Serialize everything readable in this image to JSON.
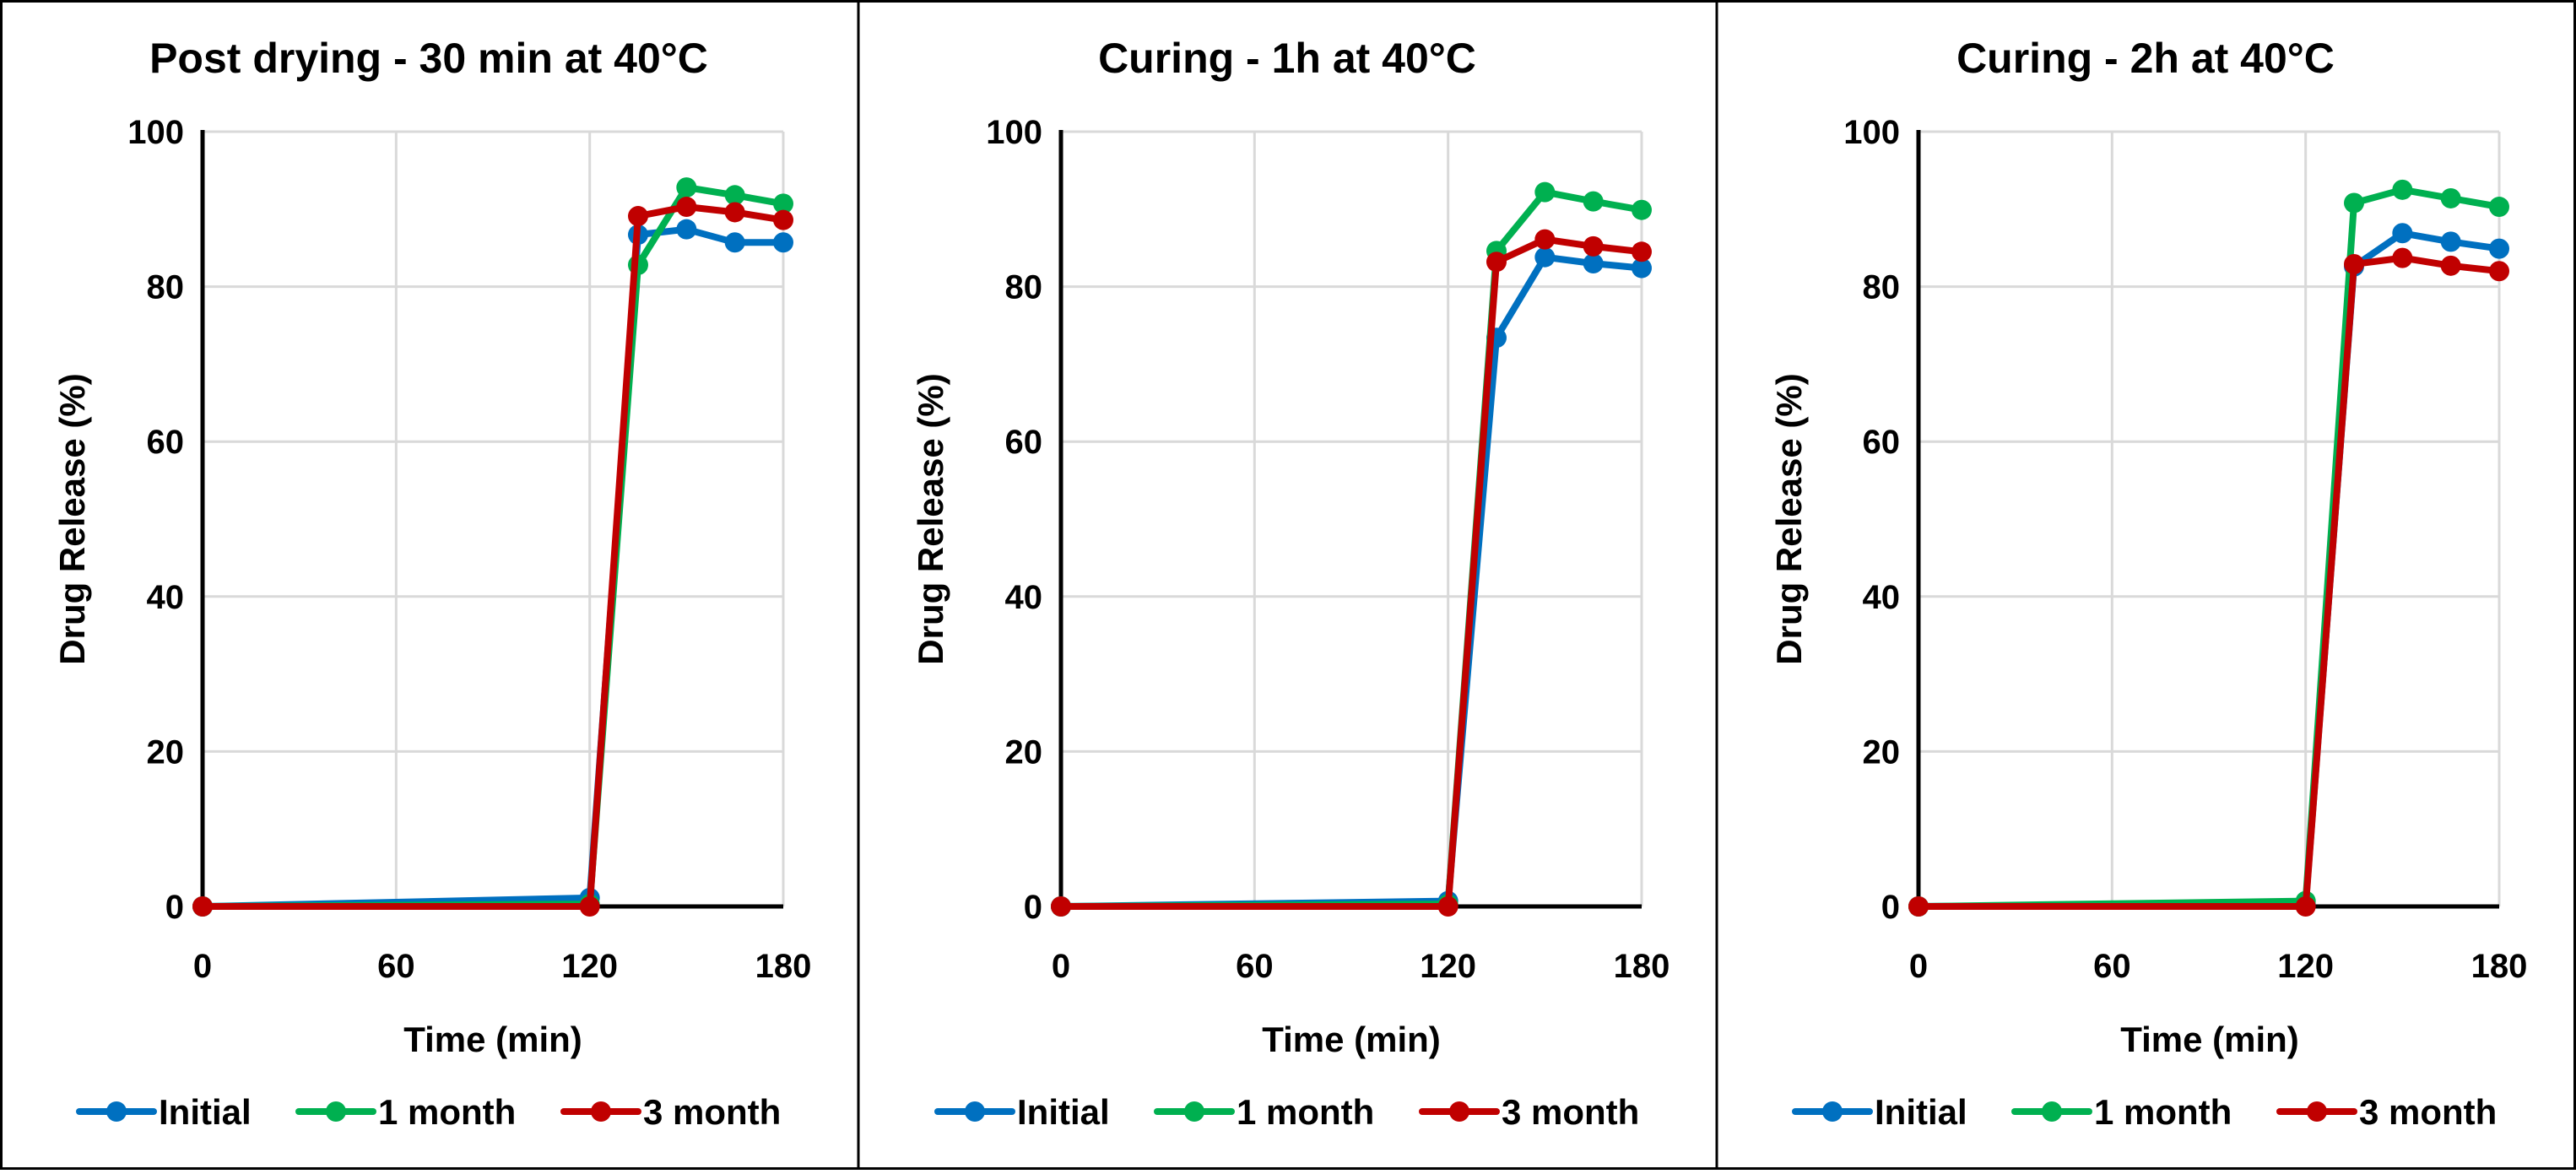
{
  "chart_data": [
    {
      "type": "line",
      "title": "Post drying - 30 min at 40°C",
      "xlabel": "Time (min)",
      "ylabel": "Drug Release (%)",
      "x": [
        0,
        120,
        135,
        150,
        165,
        180
      ],
      "xticks": [
        0,
        60,
        120,
        180
      ],
      "yticks": [
        0,
        20,
        40,
        60,
        80,
        100
      ],
      "xlim": [
        0,
        180
      ],
      "ylim": [
        0,
        100
      ],
      "grid": true,
      "legend_position": "bottom",
      "series": [
        {
          "name": "Initial",
          "color": "#0070C0",
          "values": [
            0,
            1.1,
            86.7,
            87.4,
            85.7,
            85.7
          ]
        },
        {
          "name": "1 month",
          "color": "#00B050",
          "values": [
            0,
            0.3,
            82.8,
            92.8,
            91.8,
            90.7
          ]
        },
        {
          "name": "3 month",
          "color": "#C00000",
          "values": [
            0,
            0,
            89.1,
            90.3,
            89.6,
            88.6
          ]
        }
      ]
    },
    {
      "type": "line",
      "title": "Curing - 1h at 40°C",
      "xlabel": "Time (min)",
      "ylabel": "Drug Release (%)",
      "x": [
        0,
        120,
        135,
        150,
        165,
        180
      ],
      "xticks": [
        0,
        60,
        120,
        180
      ],
      "yticks": [
        0,
        20,
        40,
        60,
        80,
        100
      ],
      "xlim": [
        0,
        180
      ],
      "ylim": [
        0,
        100
      ],
      "grid": true,
      "legend_position": "bottom",
      "series": [
        {
          "name": "Initial",
          "color": "#0070C0",
          "values": [
            0,
            0.7,
            73.4,
            83.8,
            83.0,
            82.4
          ]
        },
        {
          "name": "1 month",
          "color": "#00B050",
          "values": [
            0,
            0.3,
            84.6,
            92.2,
            91.0,
            89.9
          ]
        },
        {
          "name": "3 month",
          "color": "#C00000",
          "values": [
            0,
            0,
            83.2,
            86.1,
            85.2,
            84.5
          ]
        }
      ]
    },
    {
      "type": "line",
      "title": "Curing - 2h at 40°C",
      "xlabel": "Time (min)",
      "ylabel": "Drug Release (%)",
      "x": [
        0,
        120,
        135,
        150,
        165,
        180
      ],
      "xticks": [
        0,
        60,
        120,
        180
      ],
      "yticks": [
        0,
        20,
        40,
        60,
        80,
        100
      ],
      "xlim": [
        0,
        180
      ],
      "ylim": [
        0,
        100
      ],
      "grid": true,
      "legend_position": "bottom",
      "series": [
        {
          "name": "Initial",
          "color": "#0070C0",
          "values": [
            0,
            0.3,
            82.6,
            86.9,
            85.8,
            84.9
          ]
        },
        {
          "name": "1 month",
          "color": "#00B050",
          "values": [
            0,
            0.7,
            90.8,
            92.5,
            91.4,
            90.3
          ]
        },
        {
          "name": "3 month",
          "color": "#C00000",
          "values": [
            0,
            0,
            82.9,
            83.7,
            82.7,
            82.0
          ]
        }
      ]
    }
  ]
}
